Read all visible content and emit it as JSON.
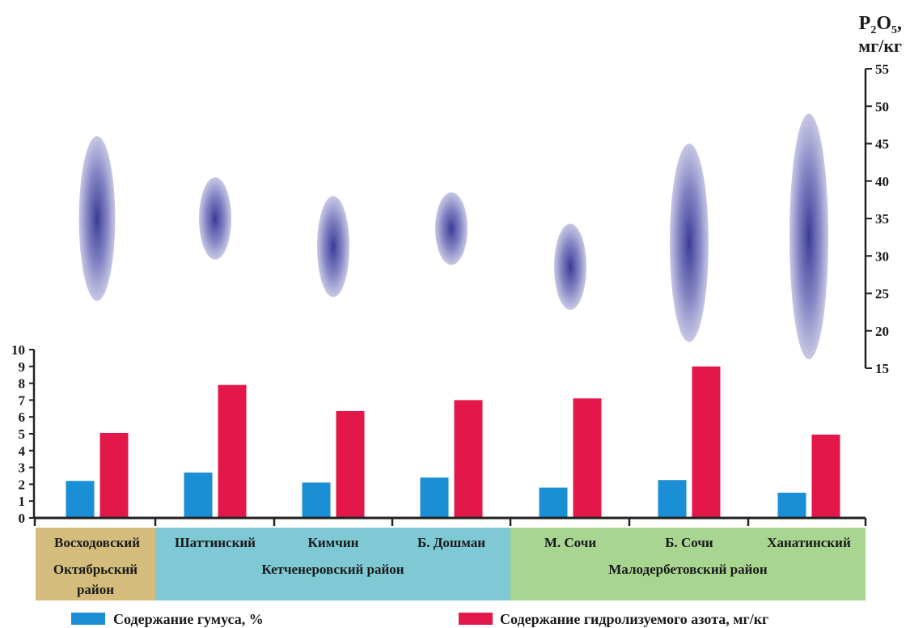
{
  "chart_data": {
    "type": "bar",
    "categories": [
      "Восходовский",
      "Шаттинский",
      "Кимчин",
      "Б. Дошман",
      "М. Сочи",
      "Б. Сочи",
      "Ханатинский"
    ],
    "districts": [
      {
        "label": "Октябрьский район",
        "lines": [
          "Октябрьский",
          "район"
        ],
        "members": [
          "Восходовский"
        ],
        "color": "#d4bd7c"
      },
      {
        "label": "Кетченеровский район",
        "lines": [
          "Кетченеровский район"
        ],
        "members": [
          "Шаттинский",
          "Кимчин",
          "Б. Дошман"
        ],
        "color": "#7ec9d4"
      },
      {
        "label": "Малодербетовский район",
        "lines": [
          "Малодербетовский район"
        ],
        "members": [
          "М. Сочи",
          "Б. Сочи",
          "Ханатинский"
        ],
        "color": "#a8d690"
      }
    ],
    "series": [
      {
        "name": "Содержание гумуса, %",
        "color": "#1b8fd6",
        "values": [
          2.2,
          2.7,
          2.1,
          2.4,
          1.8,
          2.25,
          1.5
        ]
      },
      {
        "name": "Содержание гидролизуемого азота, мг/кг",
        "color": "#e3174a",
        "values": [
          5.05,
          7.9,
          6.35,
          7.0,
          7.1,
          9.0,
          4.95
        ]
      }
    ],
    "left_axis": {
      "ylim": [
        0,
        10
      ],
      "ticks": [
        "0",
        "1",
        "2",
        "3",
        "4",
        "5",
        "6",
        "7",
        "8",
        "9",
        "10"
      ]
    },
    "right_axis": {
      "label_line1": "P",
      "label_sub1": "2",
      "label_mid": "O",
      "label_sub2": "5",
      "label_tail": ",",
      "label_line2": "мг/кг",
      "ylim": [
        15,
        55
      ],
      "ticks": [
        "15",
        "20",
        "25",
        "30",
        "35",
        "40",
        "45",
        "50",
        "55"
      ]
    },
    "p2o5_ranges": [
      {
        "category": "Восходовский",
        "low": 24,
        "high": 46
      },
      {
        "category": "Шаттинский",
        "low": 29.5,
        "high": 40.5
      },
      {
        "category": "Кимчин",
        "low": 24.5,
        "high": 38
      },
      {
        "category": "Б. Дошман",
        "low": 28.8,
        "high": 38.5
      },
      {
        "category": "М. Сочи",
        "low": 22.8,
        "high": 34.3
      },
      {
        "category": "Б. Сочи",
        "low": 18.5,
        "high": 45
      },
      {
        "category": "Ханатинский",
        "low": 16.2,
        "high": 49
      }
    ],
    "ellipse_color": "#3a3a96"
  }
}
